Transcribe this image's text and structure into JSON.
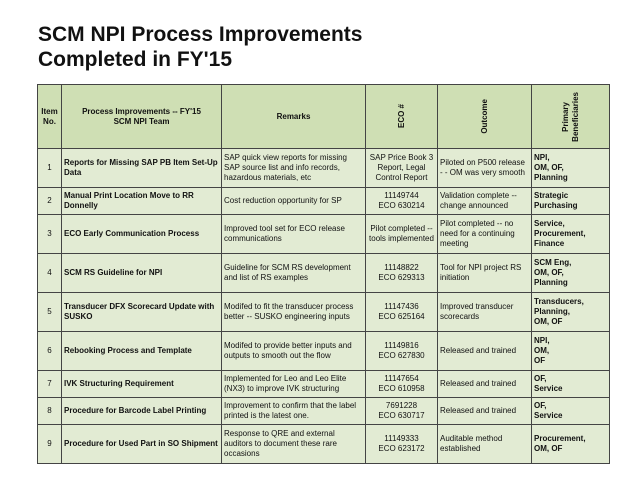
{
  "title": {
    "line1": "SCM NPI Process Improvements",
    "line2": "Completed in FY'15"
  },
  "table": {
    "headers": {
      "item": [
        "Item",
        "No."
      ],
      "process": [
        "Process Improvements -- FY'15",
        "SCM NPI Team"
      ],
      "remarks": "Remarks",
      "eco": "ECO #",
      "outcome": "Outcome",
      "beneficiaries": [
        "Primary",
        "Beneficiaries"
      ]
    },
    "rows": [
      {
        "no": "1",
        "process": "Reports for Missing SAP PB Item Set-Up Data",
        "remarks": "SAP quick view reports for missing SAP source list and info records, hazardous materials, etc",
        "eco": [
          "SAP Price Book 3",
          "Report, Legal",
          "Control Report"
        ],
        "outcome": "Piloted on P500 release - - OM was very smooth",
        "beneficiaries": [
          "NPI,",
          "OM,  OF,",
          "Planning"
        ]
      },
      {
        "no": "2",
        "process": "Manual Print Location Move to RR Donnelly",
        "remarks": "Cost reduction opportunity for SP",
        "eco": [
          "11149744",
          "ECO 630214"
        ],
        "outcome": "Validation complete -- change announced",
        "beneficiaries": [
          "Strategic",
          "Purchasing"
        ]
      },
      {
        "no": "3",
        "process": "ECO Early Communication Process",
        "remarks": "Improved tool set for ECO release communications",
        "eco": [
          "Pilot completed --",
          "tools implemented"
        ],
        "outcome": "Pilot completed -- no need for a continuing meeting",
        "beneficiaries": [
          "Service,",
          "Procurement,",
          "Finance"
        ]
      },
      {
        "no": "4",
        "process": "SCM RS Guideline for NPI",
        "remarks": "Guideline for SCM RS development and list of RS examples",
        "eco": [
          "11148822",
          "ECO 629313"
        ],
        "outcome": "Tool for NPI project RS initiation",
        "beneficiaries": [
          "SCM Eng,",
          "OM,  OF,",
          "Planning"
        ]
      },
      {
        "no": "5",
        "process": "Transducer DFX Scorecard Update with SUSKO",
        "remarks": "Modifed to fit the transducer process better -- SUSKO engineering inputs",
        "eco": [
          "11147436",
          "ECO 625164"
        ],
        "outcome": "Improved transducer scorecards",
        "beneficiaries": [
          "Transducers,",
          "Planning,",
          "OM,  OF"
        ]
      },
      {
        "no": "6",
        "process": "Rebooking Process and Template",
        "remarks": "Modifed to provide better inputs and outputs to smooth out the flow",
        "eco": [
          "11149816",
          "ECO 627830"
        ],
        "outcome": "Released and trained",
        "beneficiaries": [
          "NPI,",
          "OM,",
          "OF"
        ]
      },
      {
        "no": "7",
        "process": "IVK Structuring Requirement",
        "remarks": "Implemented for Leo and Leo Elite (NX3) to improve IVK structuring",
        "eco": [
          "11147654",
          "ECO 610958"
        ],
        "outcome": "Released and trained",
        "beneficiaries": [
          "OF,",
          "Service"
        ]
      },
      {
        "no": "8",
        "process": "Procedure for Barcode Label Printing",
        "remarks": "Improvement to confirm that the label printed is the latest one.",
        "eco": [
          "7691228",
          "ECO 630717"
        ],
        "outcome": "Released and trained",
        "beneficiaries": [
          "OF,",
          "Service"
        ]
      },
      {
        "no": "9",
        "process": "Procedure for Used Part in SO Shipment",
        "remarks": "Response to QRE and external auditors to document these rare occasions",
        "eco": [
          "11149333",
          "ECO 623172"
        ],
        "outcome": "Auditable method established",
        "beneficiaries": [
          "Procurement,",
          "OM, OF"
        ]
      }
    ]
  }
}
